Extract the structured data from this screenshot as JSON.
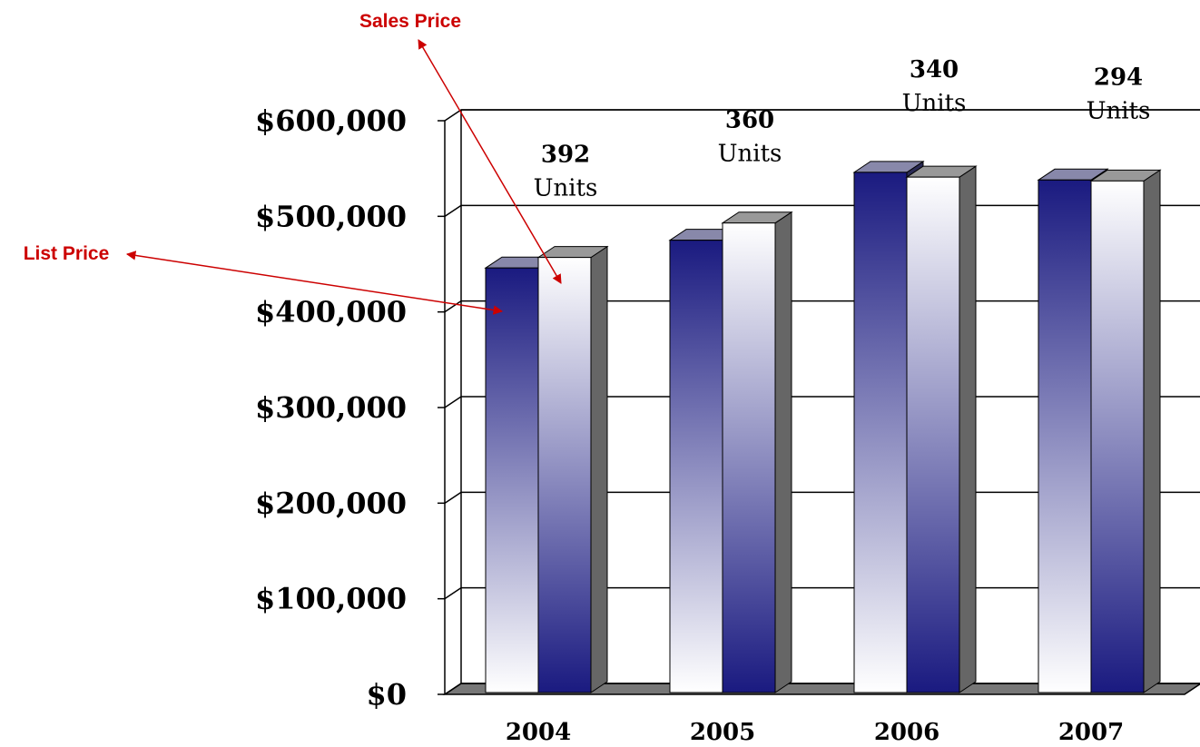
{
  "chart_data": {
    "type": "bar3d",
    "categories": [
      "2004",
      "2005",
      "2006",
      "2007"
    ],
    "series": [
      {
        "name": "List Price",
        "color": "#1a1a80",
        "values": [
          446000,
          475000,
          546000,
          538000
        ]
      },
      {
        "name": "Sales Price",
        "color": "#ffffff",
        "values": [
          457000,
          493000,
          541000,
          537000
        ]
      }
    ],
    "annotations": [
      [
        "392",
        "Units"
      ],
      [
        "360",
        "Units"
      ],
      [
        "340",
        "Units"
      ],
      [
        "294",
        "Units"
      ]
    ],
    "ylim": [
      0,
      600000
    ],
    "yticks": [
      {
        "value": 0,
        "label": "$0"
      },
      {
        "value": 100000,
        "label": "$100,000"
      },
      {
        "value": 200000,
        "label": "$200,000"
      },
      {
        "value": 300000,
        "label": "$300,000"
      },
      {
        "value": 400000,
        "label": "$400,000"
      },
      {
        "value": 500000,
        "label": "$500,000"
      },
      {
        "value": 600000,
        "label": "$600,000"
      }
    ],
    "grid": true
  }
}
